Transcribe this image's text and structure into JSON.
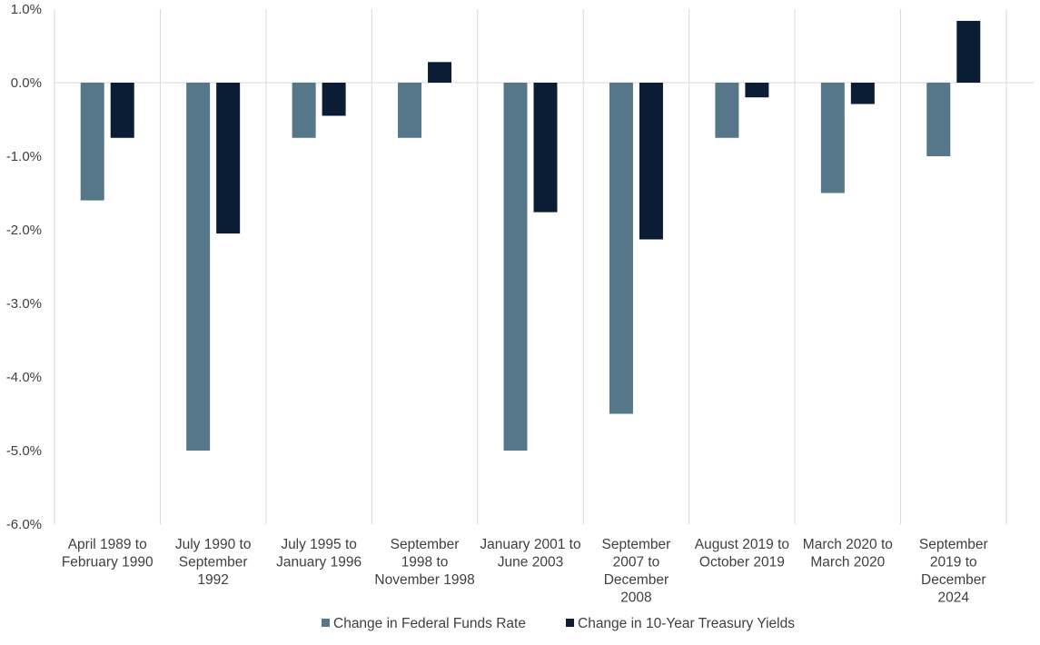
{
  "chart_data": {
    "type": "bar",
    "title": "",
    "xlabel": "",
    "ylabel": "",
    "ylim": [
      -6.0,
      1.0
    ],
    "yticks": [
      1.0,
      0.0,
      -1.0,
      -2.0,
      -3.0,
      -4.0,
      -5.0,
      -6.0
    ],
    "ytick_labels": [
      "1.0%",
      "0.0%",
      "-1.0%",
      "-2.0%",
      "-3.0%",
      "-4.0%",
      "-5.0%",
      "-6.0%"
    ],
    "grid": "vertical separators between categories",
    "categories": [
      [
        "April 1989 to",
        "February 1990"
      ],
      [
        "July 1990 to",
        "September",
        "1992"
      ],
      [
        "July 1995 to",
        "January 1996"
      ],
      [
        "September",
        "1998 to",
        "November 1998"
      ],
      [
        "January 2001 to",
        "June 2003"
      ],
      [
        "September",
        "2007 to",
        "December",
        "2008"
      ],
      [
        "August 2019 to",
        "October 2019"
      ],
      [
        "March 2020 to",
        "March 2020"
      ],
      [
        "September",
        "2019 to",
        "December",
        "2024"
      ]
    ],
    "series": [
      {
        "name": "Change in Federal Funds Rate",
        "color": "#56778a",
        "values": [
          -1.6,
          -5.0,
          -0.75,
          -0.75,
          -5.0,
          -4.5,
          -0.75,
          -1.5,
          -1.0
        ]
      },
      {
        "name": "Change in 10-Year Treasury Yields",
        "color": "#0b1c35",
        "values": [
          -0.75,
          -2.05,
          -0.45,
          0.28,
          -1.76,
          -2.13,
          -0.2,
          -0.29,
          0.84
        ]
      }
    ],
    "legend_position": "bottom-center"
  }
}
